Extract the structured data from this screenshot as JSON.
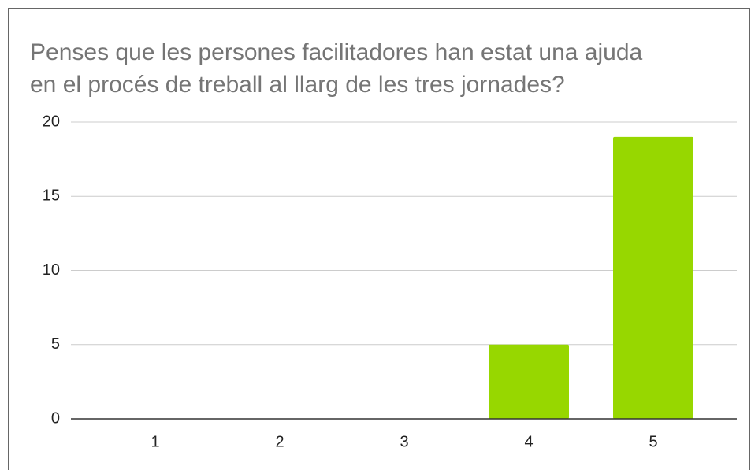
{
  "chart_data": {
    "type": "bar",
    "title": [
      "Penses que les persones facilitadores han estat una ajuda",
      "en el procés de treball al llarg de les tres jornades?"
    ],
    "categories": [
      "1",
      "2",
      "3",
      "4",
      "5"
    ],
    "values": [
      0,
      0,
      0,
      5,
      19
    ],
    "color": "#97d700",
    "ylim": [
      0,
      20
    ],
    "yticks": [
      0,
      5,
      10,
      15,
      20
    ],
    "grid": true
  }
}
